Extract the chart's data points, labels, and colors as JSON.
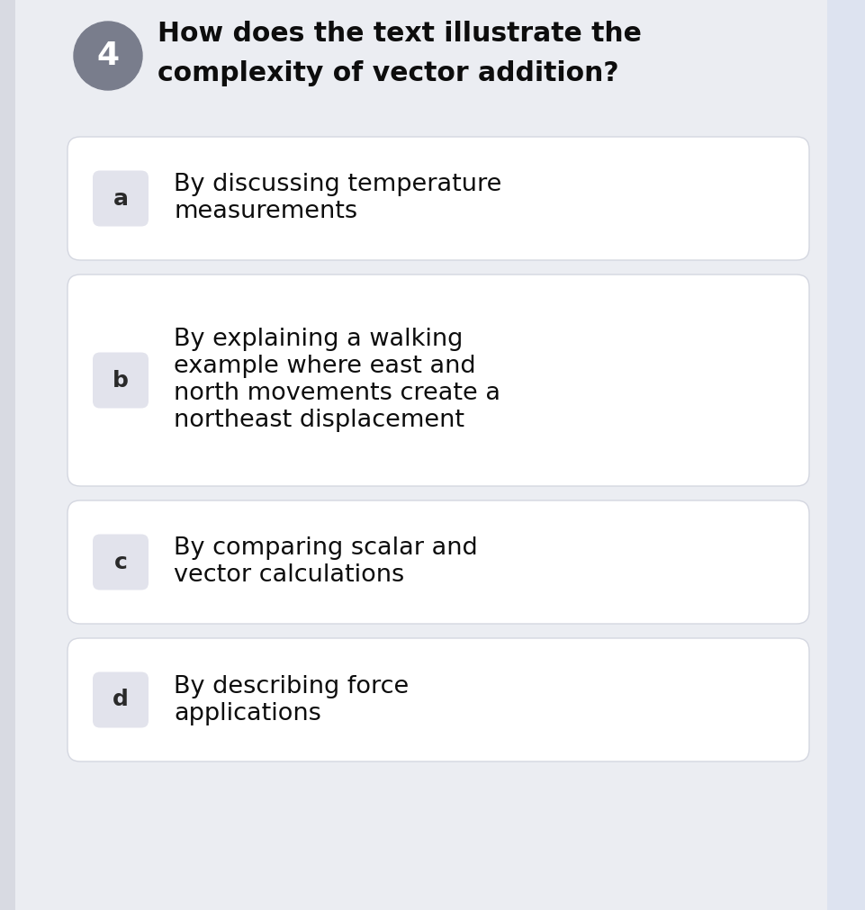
{
  "bg_color": "#ebedf2",
  "main_bg": "#ebedf2",
  "right_strip_color": "#dde3f0",
  "left_narrow_color": "#d8dae2",
  "card_bg": "#ffffff",
  "card_edge": "#d4d7e0",
  "q_num_bg": "#797d8c",
  "q_num_fg": "#ffffff",
  "q_num_text": "4",
  "q_text_line1": "How does the text illustrate the",
  "q_text_line2": "complexity of vector addition?",
  "q_text_color": "#0d0d0d",
  "q_text_fontsize": 21.5,
  "letter_bg": "#e2e3ec",
  "letter_fg": "#2a2a2a",
  "letter_fontsize": 18,
  "option_text_color": "#0d0d0d",
  "option_fontsize": 19.5,
  "options": [
    {
      "letter": "a",
      "lines": [
        "By discussing temperature",
        "measurements"
      ]
    },
    {
      "letter": "b",
      "lines": [
        "By explaining a walking",
        "example where east and",
        "north movements create a",
        "northeast displacement"
      ]
    },
    {
      "letter": "c",
      "lines": [
        "By comparing scalar and",
        "vector calculations"
      ]
    },
    {
      "letter": "d",
      "lines": [
        "By describing force",
        "applications"
      ]
    }
  ],
  "fig_w": 9.61,
  "fig_h": 10.11,
  "dpi": 100
}
